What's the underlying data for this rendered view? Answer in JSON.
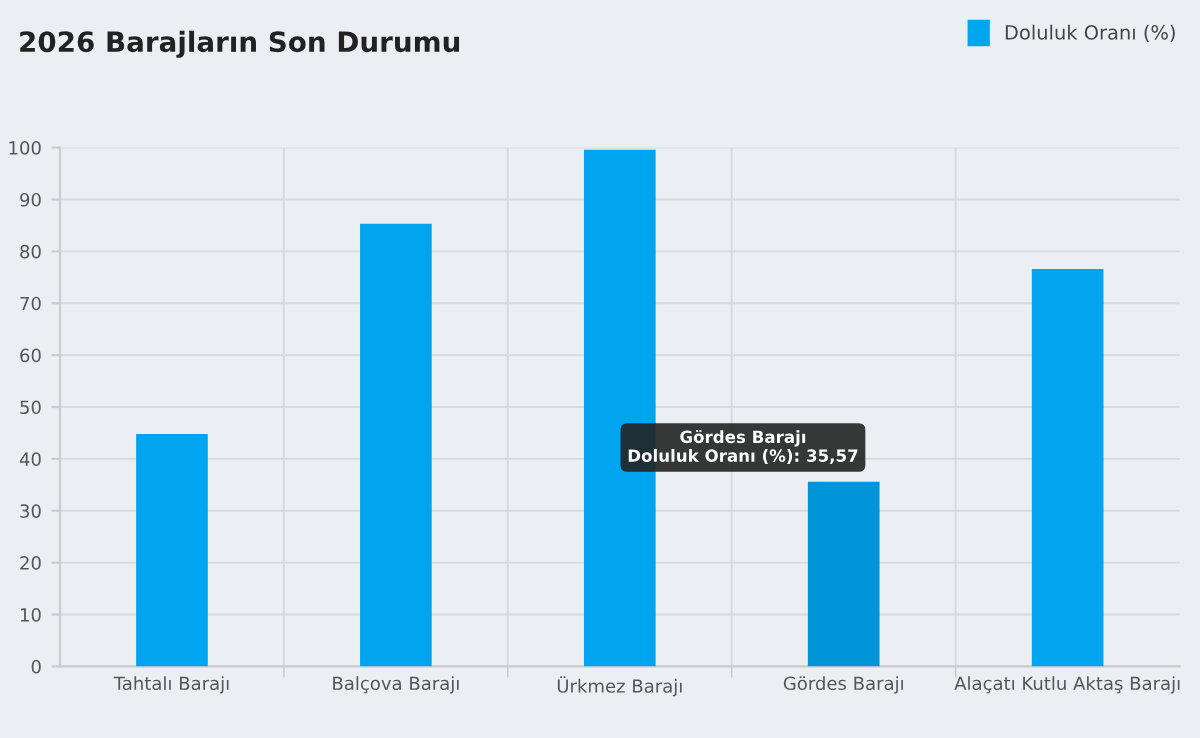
{
  "chart_data": {
    "type": "bar",
    "title": "2026 Barajların Son Durumu",
    "categories": [
      "Tahtalı Barajı",
      "Balçova Barajı",
      "Ürkmez Barajı",
      "Gördes Barajı",
      "Alaçatı Kutlu Aktaş Barajı"
    ],
    "series": [
      {
        "name": "Doluluk Oranı (%)",
        "color": "#00a4ef",
        "colors": [
          "#00a4ef",
          "#00a4ef",
          "#00a4ef",
          "#0095d9",
          "#00a4ef"
        ],
        "values": [
          44.8,
          85.3,
          99.6,
          35.57,
          76.6
        ]
      }
    ],
    "ylim": [
      0,
      100
    ],
    "yticks": [
      0,
      10,
      20,
      30,
      40,
      50,
      60,
      70,
      80,
      90,
      100
    ],
    "grid": true,
    "legend": "top right",
    "annotations": [
      {
        "text": "Gördes Barajı\nDoluluk Oranı (%): 35,57",
        "x": "Gördes Barajı",
        "y": 35.57
      }
    ]
  }
}
